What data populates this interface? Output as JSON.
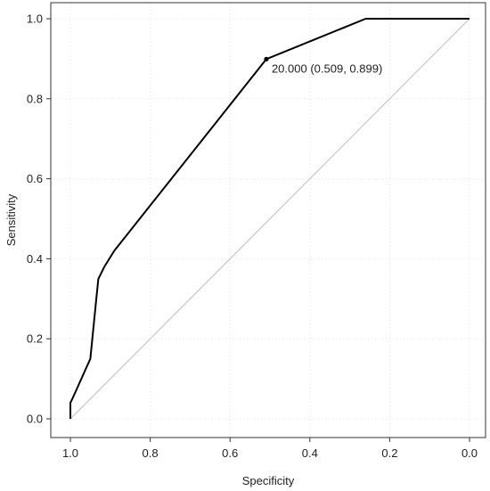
{
  "chart_data": {
    "type": "line",
    "title": "",
    "xlabel": "Specificity",
    "ylabel": "Sensitivity",
    "xlim": [
      1.0,
      0.0
    ],
    "x_reversed": true,
    "ylim": [
      0.0,
      1.0
    ],
    "grid": true,
    "xticks": [
      "1.0",
      "0.8",
      "0.6",
      "0.4",
      "0.2",
      "0.0"
    ],
    "yticks": [
      "0.0",
      "0.2",
      "0.4",
      "0.6",
      "0.8",
      "1.0"
    ],
    "series": [
      {
        "x": [
          1.0,
          1.0,
          0.995,
          0.95,
          0.935,
          0.93,
          0.915,
          0.89,
          0.509,
          0.26,
          0.0
        ],
        "y": [
          0.0,
          0.04,
          0.05,
          0.15,
          0.3,
          0.35,
          0.38,
          0.42,
          0.899,
          1.0,
          1.0
        ],
        "color": "#000000"
      }
    ],
    "reference_line": {
      "x": [
        1.0,
        0.0
      ],
      "y": [
        0.0,
        1.0
      ],
      "color": "#bfbfbf"
    },
    "highlight_point": {
      "x": 0.509,
      "y": 0.899,
      "label": "20.000 (0.509, 0.899)"
    }
  }
}
